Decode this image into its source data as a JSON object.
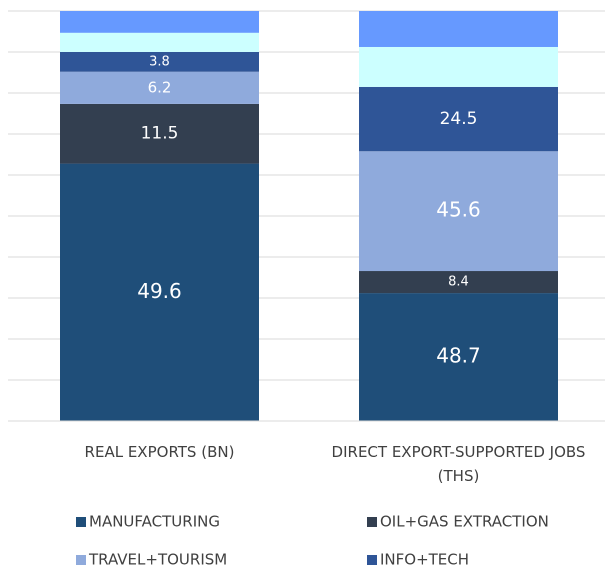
{
  "chart_data": {
    "type": "bar",
    "stacked": "percent",
    "categories": [
      "REAL EXPORTS (BN)",
      "DIRECT EXPORT-SUPPORTED JOBS (THS)"
    ],
    "series": [
      {
        "name": "MANUFACTURING",
        "color": "#1f4e79",
        "values": [
          49.6,
          48.7
        ]
      },
      {
        "name": "OIL+GAS EXTRACTION",
        "color": "#333f50",
        "values": [
          11.5,
          8.4
        ]
      },
      {
        "name": "TRAVEL+TOURISM",
        "color": "#8faadc",
        "values": [
          6.2,
          45.6
        ]
      },
      {
        "name": "INFO+TECH",
        "color": "#2f5597",
        "values": [
          3.8,
          24.5
        ]
      },
      {
        "color": "#ccffff",
        "values": [
          3.7,
          15.2
        ]
      },
      {
        "color": "#6699ff",
        "values": [
          4.2,
          13.7
        ]
      }
    ],
    "ylim": [
      0,
      100
    ],
    "yticks": [
      0,
      10,
      20,
      30,
      40,
      50,
      60,
      70,
      80,
      90,
      100
    ],
    "grid": true
  }
}
